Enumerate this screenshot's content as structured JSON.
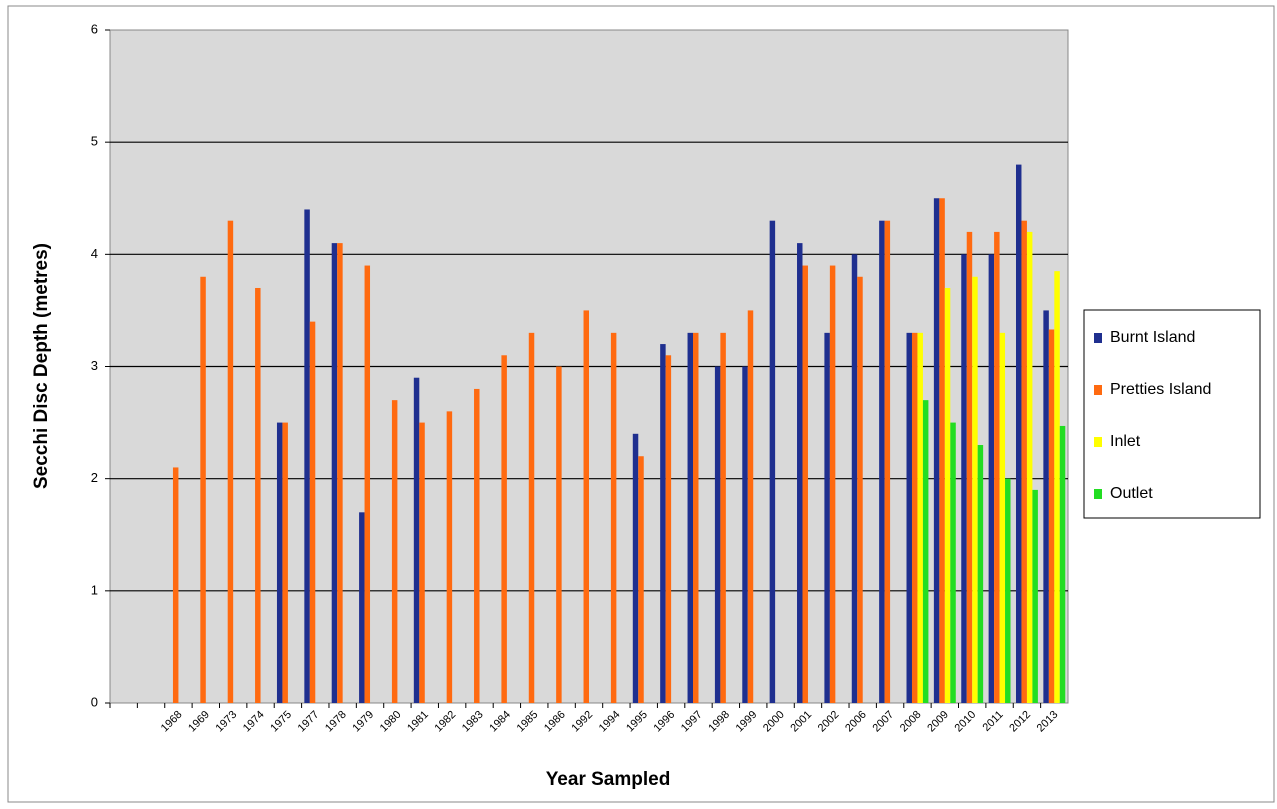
{
  "chart_data": {
    "type": "bar",
    "y_label": "Secchi Disc Depth (metres)",
    "x_label": "Year Sampled",
    "categories": [
      null,
      null,
      "1968",
      "1969",
      "1973",
      "1974",
      "1975",
      "1977",
      "1978",
      "1979",
      "1980",
      "1981",
      "1982",
      "1983",
      "1984",
      "1985",
      "1986",
      "1992",
      "1994",
      "1995",
      "1996",
      "1997",
      "1998",
      "1999",
      "2000",
      "2001",
      "2002",
      "2006",
      "2007",
      "2008",
      "2009",
      "2010",
      "2011",
      "2012",
      "2013"
    ],
    "series": [
      {
        "name": "Burnt Island",
        "color": "#1f2f8f",
        "values": [
          null,
          null,
          null,
          null,
          null,
          null,
          2.5,
          4.4,
          4.1,
          1.7,
          null,
          2.9,
          null,
          null,
          null,
          null,
          null,
          null,
          null,
          2.4,
          3.2,
          3.3,
          3.0,
          3.0,
          4.3,
          4.1,
          3.3,
          4.0,
          4.3,
          3.3,
          4.5,
          4.0,
          4.0,
          4.8,
          3.5
        ]
      },
      {
        "name": "Pretties Island",
        "color": "#ff6a10",
        "values": [
          null,
          null,
          2.1,
          3.8,
          4.3,
          3.7,
          2.5,
          3.4,
          4.1,
          3.9,
          2.7,
          2.5,
          2.6,
          2.8,
          3.1,
          3.3,
          3.0,
          3.5,
          3.3,
          2.2,
          3.1,
          3.3,
          3.3,
          3.5,
          null,
          3.9,
          3.9,
          3.8,
          4.3,
          3.3,
          4.5,
          4.2,
          4.2,
          4.3,
          3.33
        ]
      },
      {
        "name": "Inlet",
        "color": "#ffff00",
        "values": [
          null,
          null,
          null,
          null,
          null,
          null,
          null,
          null,
          null,
          null,
          null,
          null,
          null,
          null,
          null,
          null,
          null,
          null,
          null,
          null,
          null,
          null,
          null,
          null,
          null,
          null,
          null,
          null,
          null,
          3.3,
          3.7,
          3.8,
          3.3,
          4.2,
          3.85
        ]
      },
      {
        "name": "Outlet",
        "color": "#22dd22",
        "values": [
          null,
          null,
          null,
          null,
          null,
          null,
          null,
          null,
          null,
          null,
          null,
          null,
          null,
          null,
          null,
          null,
          null,
          null,
          null,
          null,
          null,
          null,
          null,
          null,
          null,
          null,
          null,
          null,
          null,
          2.7,
          2.5,
          2.3,
          2.0,
          1.9,
          2.47
        ]
      }
    ],
    "ylim": [
      0,
      6
    ],
    "yticks": [
      0,
      1,
      2,
      3,
      4,
      5,
      6
    ],
    "grid": true,
    "legend": "right"
  }
}
